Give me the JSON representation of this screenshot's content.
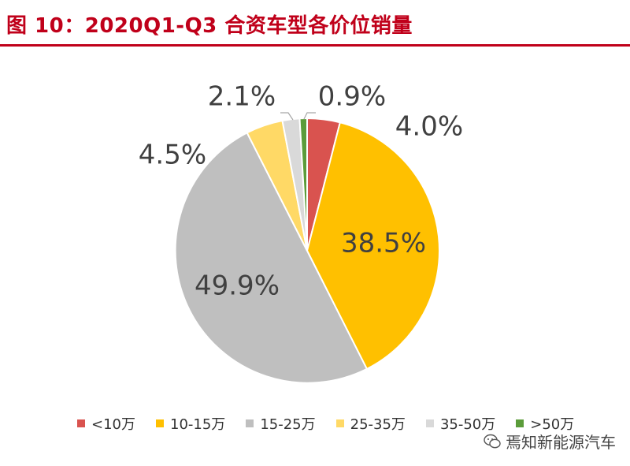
{
  "title": "图 10：2020Q1-Q3 合资车型各价位销量",
  "watermark": "焉知新能源汽车",
  "chart_data": {
    "type": "pie",
    "categories": [
      "<10万",
      "10-15万",
      "15-25万",
      "25-35万",
      "35-50万",
      ">50万"
    ],
    "values": [
      4.0,
      38.5,
      49.9,
      4.5,
      2.1,
      0.9
    ],
    "labels": [
      "4.0%",
      "38.5%",
      "49.9%",
      "4.5%",
      "2.1%",
      "0.9%"
    ],
    "colors": [
      "#d9534f",
      "#ffc000",
      "#bfbfbf",
      "#ffd966",
      "#d9d9d9",
      "#5b9c3a"
    ],
    "legend_position": "bottom"
  }
}
